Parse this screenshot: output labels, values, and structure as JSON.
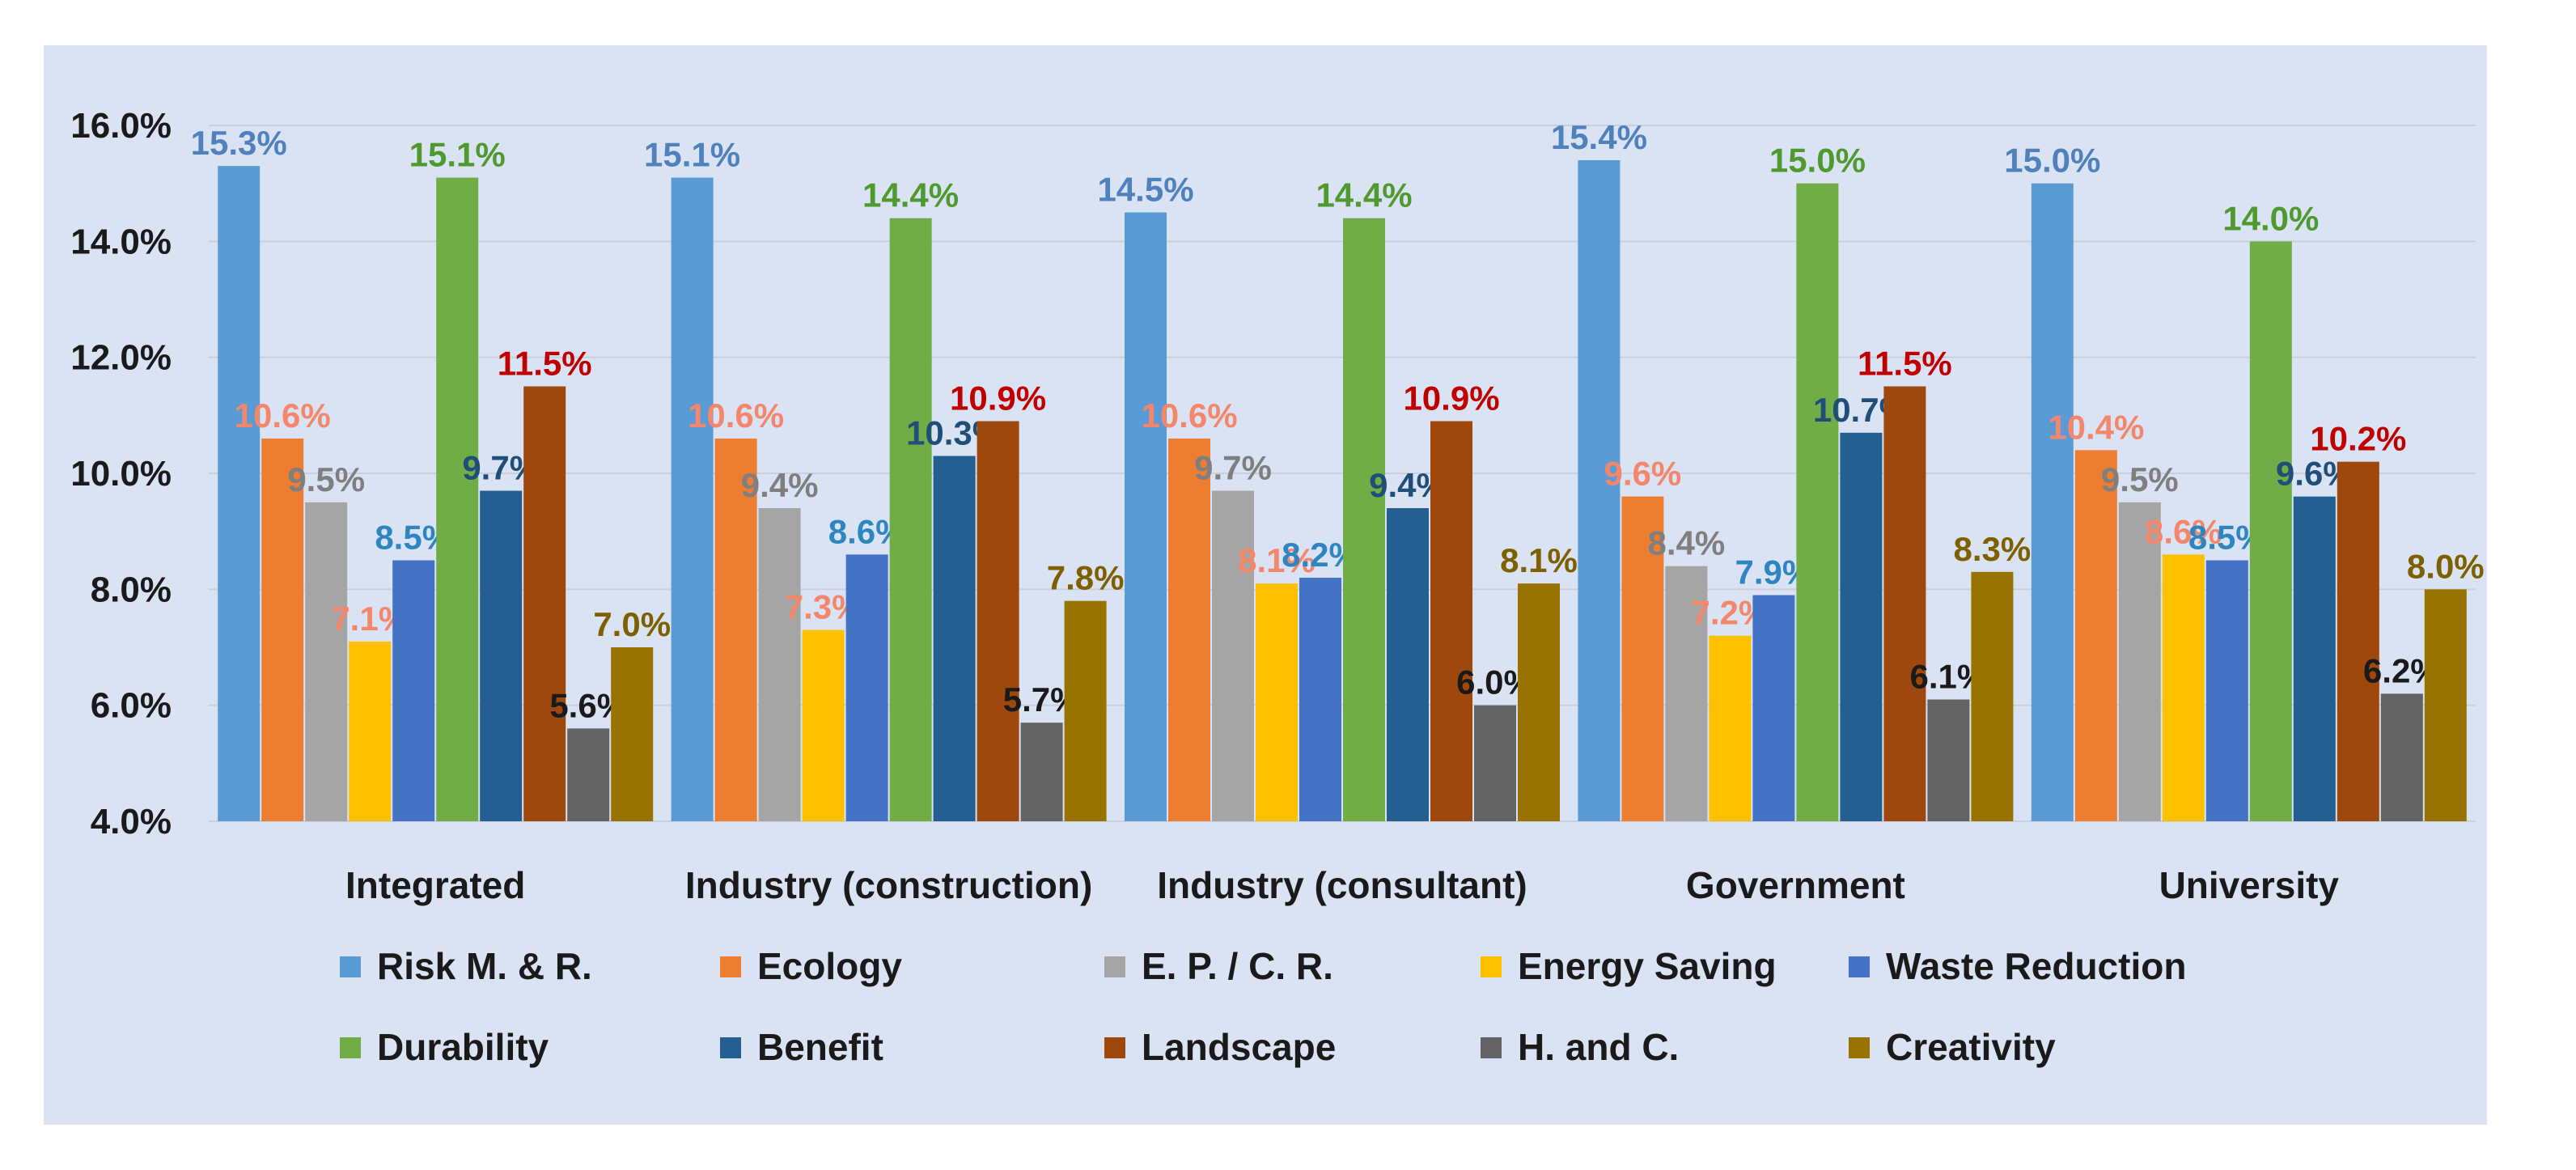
{
  "chart_data": {
    "type": "bar",
    "title": "",
    "xlabel": "",
    "ylabel": "",
    "ylim": [
      4.0,
      16.0
    ],
    "yticks": [
      "4.0%",
      "6.0%",
      "8.0%",
      "10.0%",
      "12.0%",
      "14.0%",
      "16.0%"
    ],
    "ytick_values": [
      4,
      6,
      8,
      10,
      12,
      14,
      16
    ],
    "grid": true,
    "legend_position": "bottom",
    "categories": [
      "Integrated",
      "Industry (construction)",
      "Industry (consultant)",
      "Government",
      "University"
    ],
    "series": [
      {
        "name": "Risk M. & R.",
        "color": "#5b9bd5",
        "label_color": "#4f81bd",
        "values": [
          15.3,
          15.1,
          14.5,
          15.4,
          15.0
        ],
        "labels": [
          "15.3%",
          "15.1%",
          "14.5%",
          "15.4%",
          "15.0%"
        ]
      },
      {
        "name": "Ecology",
        "color": "#ed7d31",
        "label_color": "#f4876b",
        "values": [
          10.6,
          10.6,
          10.6,
          9.6,
          10.4
        ],
        "labels": [
          "10.6%",
          "10.6%",
          "10.6%",
          "9.6%",
          "10.4%"
        ]
      },
      {
        "name": "E. P. / C. R.",
        "color": "#a5a5a5",
        "label_color": "#7f7f7f",
        "values": [
          9.5,
          9.4,
          9.7,
          8.4,
          9.5
        ],
        "labels": [
          "9.5%",
          "9.4%",
          "9.7%",
          "8.4%",
          "9.5%"
        ]
      },
      {
        "name": "Energy Saving",
        "color": "#ffc000",
        "label_color": "#f4876b",
        "values": [
          7.1,
          7.3,
          8.1,
          7.2,
          8.6
        ],
        "labels": [
          "7.1%",
          "7.3%",
          "8.1%",
          "7.2%",
          "8.6%"
        ]
      },
      {
        "name": "Waste Reduction",
        "color": "#4472c4",
        "label_color": "#2e86c1",
        "values": [
          8.5,
          8.6,
          8.2,
          7.9,
          8.5
        ],
        "labels": [
          "8.5%",
          "8.6%",
          "8.2%",
          "7.9%",
          "8.5%"
        ]
      },
      {
        "name": "Durability",
        "color": "#70ad47",
        "label_color": "#4e9a2e",
        "values": [
          15.1,
          14.4,
          14.4,
          15.0,
          14.0
        ],
        "labels": [
          "15.1%",
          "14.4%",
          "14.4%",
          "15.0%",
          "14.0%"
        ]
      },
      {
        "name": "Benefit",
        "color": "#255e91",
        "label_color": "#1f4e79",
        "values": [
          9.7,
          10.3,
          9.4,
          10.7,
          9.6
        ],
        "labels": [
          "9.7%",
          "10.3%",
          "9.4%",
          "10.7%",
          "9.6%"
        ]
      },
      {
        "name": "Landscape",
        "color": "#9e480e",
        "label_color": "#c00000",
        "values": [
          11.5,
          10.9,
          10.9,
          11.5,
          10.2
        ],
        "labels": [
          "11.5%",
          "10.9%",
          "10.9%",
          "11.5%",
          "10.2%"
        ]
      },
      {
        "name": "H. and C.",
        "color": "#636363",
        "label_color": "#1a1a1a",
        "values": [
          5.6,
          5.7,
          6.0,
          6.1,
          6.2
        ],
        "labels": [
          "5.6%",
          "5.7%",
          "6.0%",
          "6.1%",
          "6.2%"
        ]
      },
      {
        "name": "Creativity",
        "color": "#997300",
        "label_color": "#7f6000",
        "values": [
          7.0,
          7.8,
          8.1,
          8.3,
          8.0
        ],
        "labels": [
          "7.0%",
          "7.8%",
          "8.1%",
          "8.3%",
          "8.0%"
        ]
      }
    ]
  }
}
